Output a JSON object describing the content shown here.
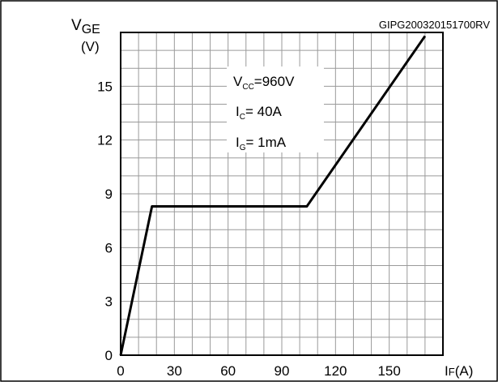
{
  "figure_id": "GIPG200320151700RV",
  "chart_data": {
    "type": "line",
    "ylabel_main": "V",
    "ylabel_sub": "GE",
    "yunit": "(V)",
    "xlabel_main": "I",
    "xlabel_sub": "F",
    "xunit": "(A)",
    "xlim": [
      0,
      180
    ],
    "ylim": [
      0,
      18
    ],
    "xticks": [
      "0",
      "30",
      "60",
      "90",
      "120",
      "150"
    ],
    "yticks": [
      "0",
      "3",
      "6",
      "9",
      "12",
      "15"
    ],
    "xtick_values": [
      0,
      30,
      60,
      90,
      120,
      150
    ],
    "ytick_values": [
      0,
      3,
      6,
      9,
      12,
      15
    ],
    "grid": true,
    "series": [
      {
        "x": [
          0,
          17.5,
          104,
          170
        ],
        "y": [
          0,
          8.3,
          8.3,
          17.8
        ]
      }
    ],
    "annotations": [
      {
        "main": "V",
        "sub": "CC",
        "rest": "=960V"
      },
      {
        "main": "I",
        "sub": "C",
        "rest": "= 40A"
      },
      {
        "main": "I",
        "sub": "G",
        "rest": "= 1mA"
      }
    ]
  }
}
